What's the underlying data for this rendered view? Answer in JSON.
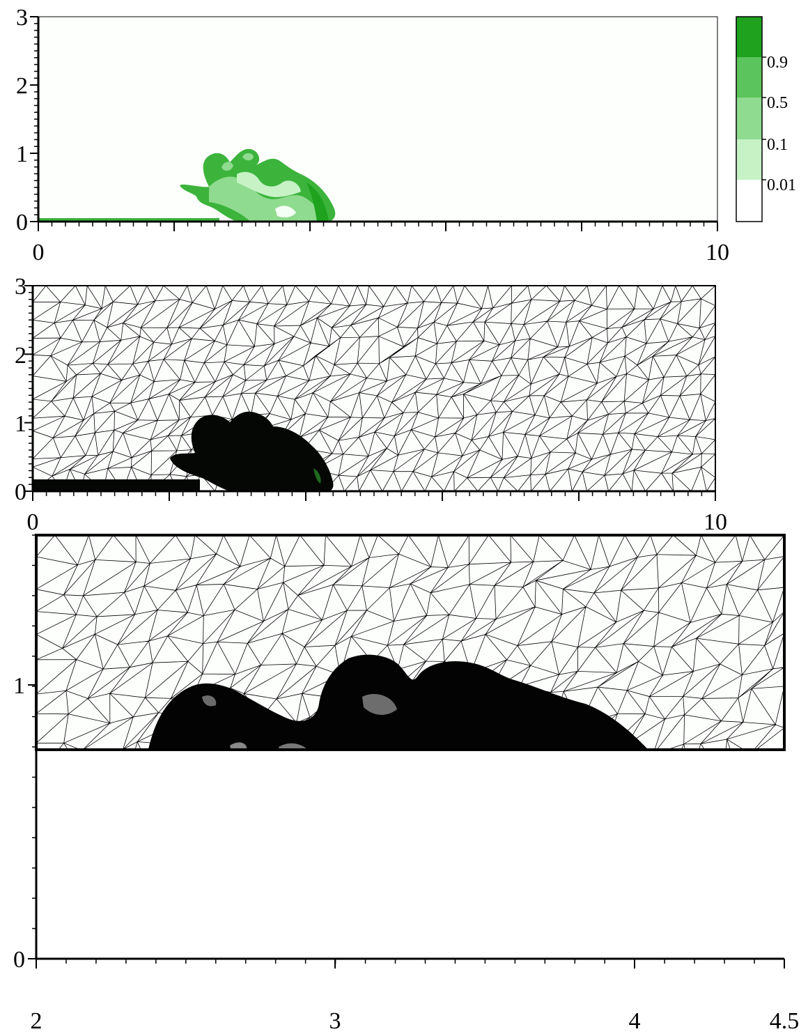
{
  "panels": [
    {
      "id": "contour",
      "description": "concentration field",
      "x_ticks": [
        "0",
        "10"
      ],
      "y_ticks": [
        "0",
        "1",
        "2",
        "3"
      ]
    },
    {
      "id": "mesh-full",
      "x_ticks": [
        "0",
        "10"
      ],
      "y_ticks": [
        "0",
        "1",
        "2",
        "3"
      ]
    },
    {
      "id": "mesh-zoom",
      "x_ticks": [
        "2",
        "3",
        "4",
        "4.5"
      ],
      "y_ticks": [
        "0",
        "1"
      ]
    }
  ],
  "colorbar": {
    "labels": [
      "0.9",
      "0.5",
      "0.1",
      "0.01"
    ],
    "colors": [
      "#1fa31f",
      "#5cc45c",
      "#8fdb8f",
      "#c6f2c6",
      "#ffffff"
    ]
  },
  "colors": {
    "mesh": "#000000",
    "current": "#3cb43c"
  }
}
